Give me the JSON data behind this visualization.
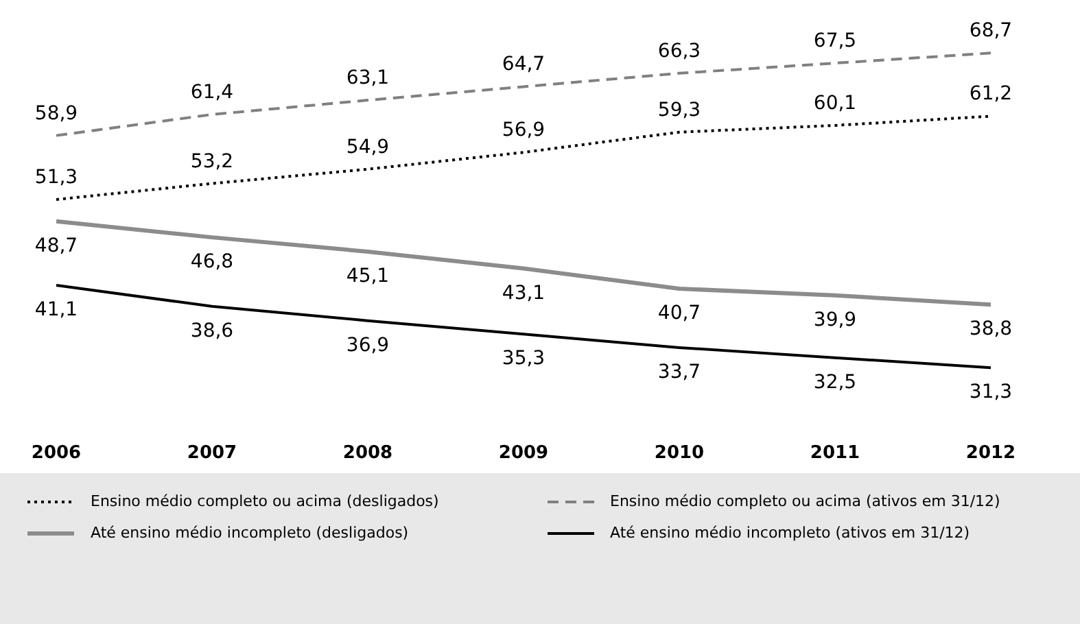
{
  "chart_data": {
    "type": "line",
    "categories": [
      "2006",
      "2007",
      "2008",
      "2009",
      "2010",
      "2011",
      "2012"
    ],
    "series": [
      {
        "name": "Ensino médio completo ou acima (desligados)",
        "color": "#000000",
        "line_style": "dotted",
        "values": [
          51.3,
          53.2,
          54.9,
          56.9,
          59.3,
          60.1,
          61.2
        ],
        "value_labels": [
          "51,3",
          "53,2",
          "54,9",
          "56,9",
          "59,3",
          "60,1",
          "61,2"
        ]
      },
      {
        "name": "Ensino médio completo ou acima (ativos em 31/12)",
        "color": "#808080",
        "line_style": "dashed",
        "values": [
          58.9,
          61.4,
          63.1,
          64.7,
          66.3,
          67.5,
          68.7
        ],
        "value_labels": [
          "58,9",
          "61,4",
          "63,1",
          "64,7",
          "66,3",
          "67,5",
          "68,7"
        ]
      },
      {
        "name": "Até ensino médio incompleto (desligados)",
        "color": "#8c8c8c",
        "line_style": "solid",
        "values": [
          48.7,
          46.8,
          45.1,
          43.1,
          40.7,
          39.9,
          38.8
        ],
        "value_labels": [
          "48,7",
          "46,8",
          "45,1",
          "43,1",
          "40,7",
          "39,9",
          "38,8"
        ]
      },
      {
        "name": "Até ensino médio incompleto (ativos em 31/12)",
        "color": "#000000",
        "line_style": "solid",
        "values": [
          41.1,
          38.6,
          36.9,
          35.3,
          33.7,
          32.5,
          31.3
        ],
        "value_labels": [
          "41,1",
          "38,6",
          "36,9",
          "35,3",
          "33,7",
          "32,5",
          "31,3"
        ]
      }
    ],
    "tick_labels": "x",
    "legend": "bottom",
    "marker": "none"
  }
}
